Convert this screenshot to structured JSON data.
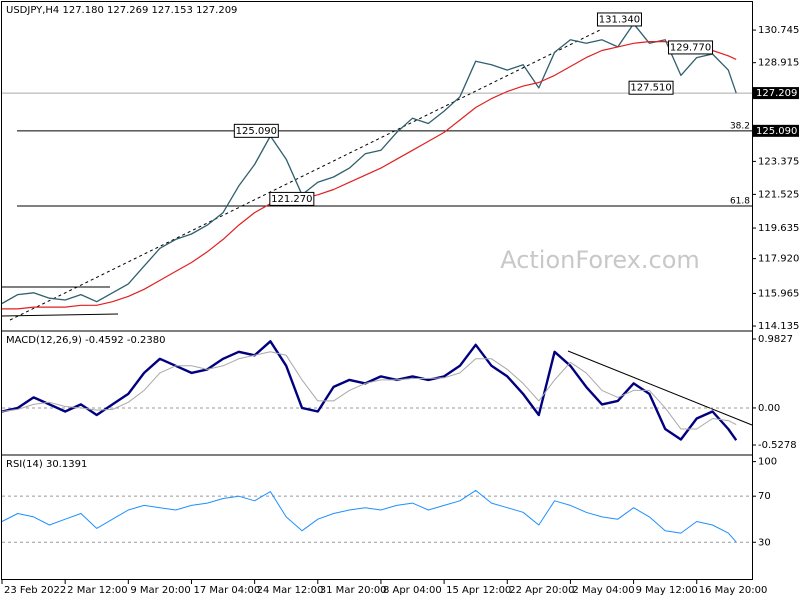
{
  "chart_data": [
    {
      "type": "line",
      "title": "USDJPY,H4 127.180 127.269 127.153 127.209",
      "watermark": "ActionForex.com",
      "x": [
        0,
        2,
        4,
        6,
        8,
        10,
        12,
        14,
        16,
        18,
        20,
        22,
        24,
        26,
        28,
        30,
        32,
        34,
        36,
        38,
        40,
        42,
        44,
        46,
        48,
        50,
        52,
        54,
        56,
        58,
        60,
        62,
        64,
        66,
        68,
        70,
        72,
        74,
        76,
        78,
        80,
        82,
        84,
        86,
        88,
        90,
        92,
        93
      ],
      "xlim": [
        0,
        95
      ],
      "xticks": [
        {
          "value": 0,
          "label": "23 Feb 2022"
        },
        {
          "value": 8,
          "label": "2 Mar 12:00"
        },
        {
          "value": 16,
          "label": "9 Mar 20:00"
        },
        {
          "value": 24,
          "label": "17 Mar 04:00"
        },
        {
          "value": 32,
          "label": "24 Mar 12:00"
        },
        {
          "value": 40,
          "label": "31 Mar 20:00"
        },
        {
          "value": 48,
          "label": "8 Apr 04:00"
        },
        {
          "value": 56,
          "label": "15 Apr 12:00"
        },
        {
          "value": 64,
          "label": "22 Apr 20:00"
        },
        {
          "value": 72,
          "label": "2 May 04:00"
        },
        {
          "value": 80,
          "label": "9 May 12:00"
        },
        {
          "value": 88,
          "label": "16 May 20:00"
        }
      ],
      "ylim": [
        113.97,
        132.32
      ],
      "yticks": [
        130.745,
        128.915,
        123.375,
        121.525,
        119.635,
        {
          "value": 117.92,
          "label": "117.920"
        },
        115.965,
        114.135
      ],
      "current_price": 127.209,
      "series": [
        {
          "name": "USDJPY",
          "color": "#2f5f6f",
          "width": 1.3,
          "values": [
            115.4,
            115.9,
            116.0,
            115.7,
            115.6,
            115.9,
            115.5,
            116.0,
            116.5,
            117.5,
            118.5,
            119.0,
            119.3,
            119.8,
            120.5,
            122.0,
            123.2,
            124.8,
            123.5,
            121.5,
            122.2,
            122.5,
            123.0,
            123.8,
            124.0,
            125.0,
            125.8,
            125.5,
            126.2,
            127.0,
            129.0,
            128.8,
            128.5,
            128.8,
            127.5,
            129.5,
            130.2,
            130.0,
            130.2,
            129.8,
            131.1,
            130.0,
            130.2,
            128.2,
            129.2,
            129.4,
            128.5,
            127.209
          ]
        },
        {
          "name": "MA",
          "color": "#e02020",
          "width": 1.2,
          "values": [
            115.1,
            115.1,
            115.2,
            115.2,
            115.2,
            115.3,
            115.3,
            115.5,
            115.8,
            116.2,
            116.7,
            117.2,
            117.7,
            118.3,
            119.0,
            119.8,
            120.5,
            121.0,
            121.3,
            121.3,
            121.5,
            121.8,
            122.2,
            122.6,
            123.0,
            123.5,
            124.0,
            124.5,
            125.0,
            125.7,
            126.4,
            126.9,
            127.3,
            127.6,
            127.8,
            128.2,
            128.7,
            129.2,
            129.6,
            129.8,
            130.0,
            130.1,
            130.1,
            129.9,
            129.8,
            129.6,
            129.3,
            129.1
          ]
        }
      ],
      "hlines": [
        {
          "value": 125.09,
          "label": "125.090",
          "fib": "38.2"
        },
        {
          "value": 120.87,
          "fib": "61.8"
        }
      ],
      "annotations": [
        {
          "x": 81,
          "value": 131.34,
          "label": "131.340"
        },
        {
          "x": 90,
          "value": 129.77,
          "label": "129.770"
        },
        {
          "x": 85,
          "value": 127.51,
          "label": "127.510"
        },
        {
          "x": 35,
          "value": 125.09,
          "label": "125.090"
        },
        {
          "x": 39.5,
          "value": 121.27,
          "label": "121.270"
        }
      ]
    },
    {
      "type": "line",
      "title": "MACD(12,26,9) -0.4592 -0.2380",
      "ylim": [
        -0.642,
        1.068
      ],
      "yticks": [
        0.9827,
        {
          "value": 0,
          "label": "0.00"
        },
        -0.5278
      ],
      "series": [
        {
          "name": "MACD",
          "color": "#000080",
          "width": 2.4,
          "values": [
            -0.05,
            0.0,
            0.15,
            0.05,
            -0.05,
            0.05,
            -0.1,
            0.05,
            0.2,
            0.5,
            0.7,
            0.6,
            0.5,
            0.55,
            0.7,
            0.8,
            0.75,
            0.95,
            0.6,
            0.0,
            -0.05,
            0.3,
            0.4,
            0.35,
            0.45,
            0.4,
            0.45,
            0.4,
            0.45,
            0.6,
            0.9,
            0.6,
            0.45,
            0.2,
            -0.1,
            0.8,
            0.6,
            0.3,
            0.05,
            0.1,
            0.35,
            0.2,
            -0.3,
            -0.45,
            -0.15,
            -0.05,
            -0.3,
            -0.4592
          ]
        },
        {
          "name": "Signal",
          "color": "#a8a8a8",
          "width": 1,
          "values": [
            -0.05,
            -0.02,
            0.05,
            0.08,
            0.02,
            0.0,
            -0.03,
            -0.02,
            0.08,
            0.25,
            0.5,
            0.6,
            0.6,
            0.55,
            0.6,
            0.7,
            0.75,
            0.8,
            0.75,
            0.4,
            0.1,
            0.1,
            0.25,
            0.35,
            0.4,
            0.4,
            0.42,
            0.42,
            0.43,
            0.5,
            0.7,
            0.7,
            0.55,
            0.35,
            0.1,
            0.4,
            0.65,
            0.5,
            0.25,
            0.15,
            0.25,
            0.25,
            0.0,
            -0.3,
            -0.3,
            -0.15,
            -0.18,
            -0.238
          ]
        }
      ]
    },
    {
      "type": "line",
      "title": "RSI(14) 30.1391",
      "ylim": [
        -1,
        104
      ],
      "yticks": [
        100,
        70,
        30
      ],
      "levels": [
        70,
        30
      ],
      "series": [
        {
          "name": "RSI",
          "color": "#1e90ff",
          "width": 1,
          "values": [
            48,
            55,
            52,
            45,
            50,
            55,
            42,
            50,
            58,
            62,
            60,
            58,
            62,
            64,
            68,
            70,
            66,
            74,
            52,
            40,
            50,
            55,
            58,
            60,
            58,
            62,
            64,
            58,
            62,
            66,
            75,
            64,
            60,
            56,
            45,
            66,
            62,
            56,
            52,
            50,
            60,
            52,
            40,
            38,
            48,
            45,
            38,
            30.1391
          ]
        }
      ]
    }
  ]
}
